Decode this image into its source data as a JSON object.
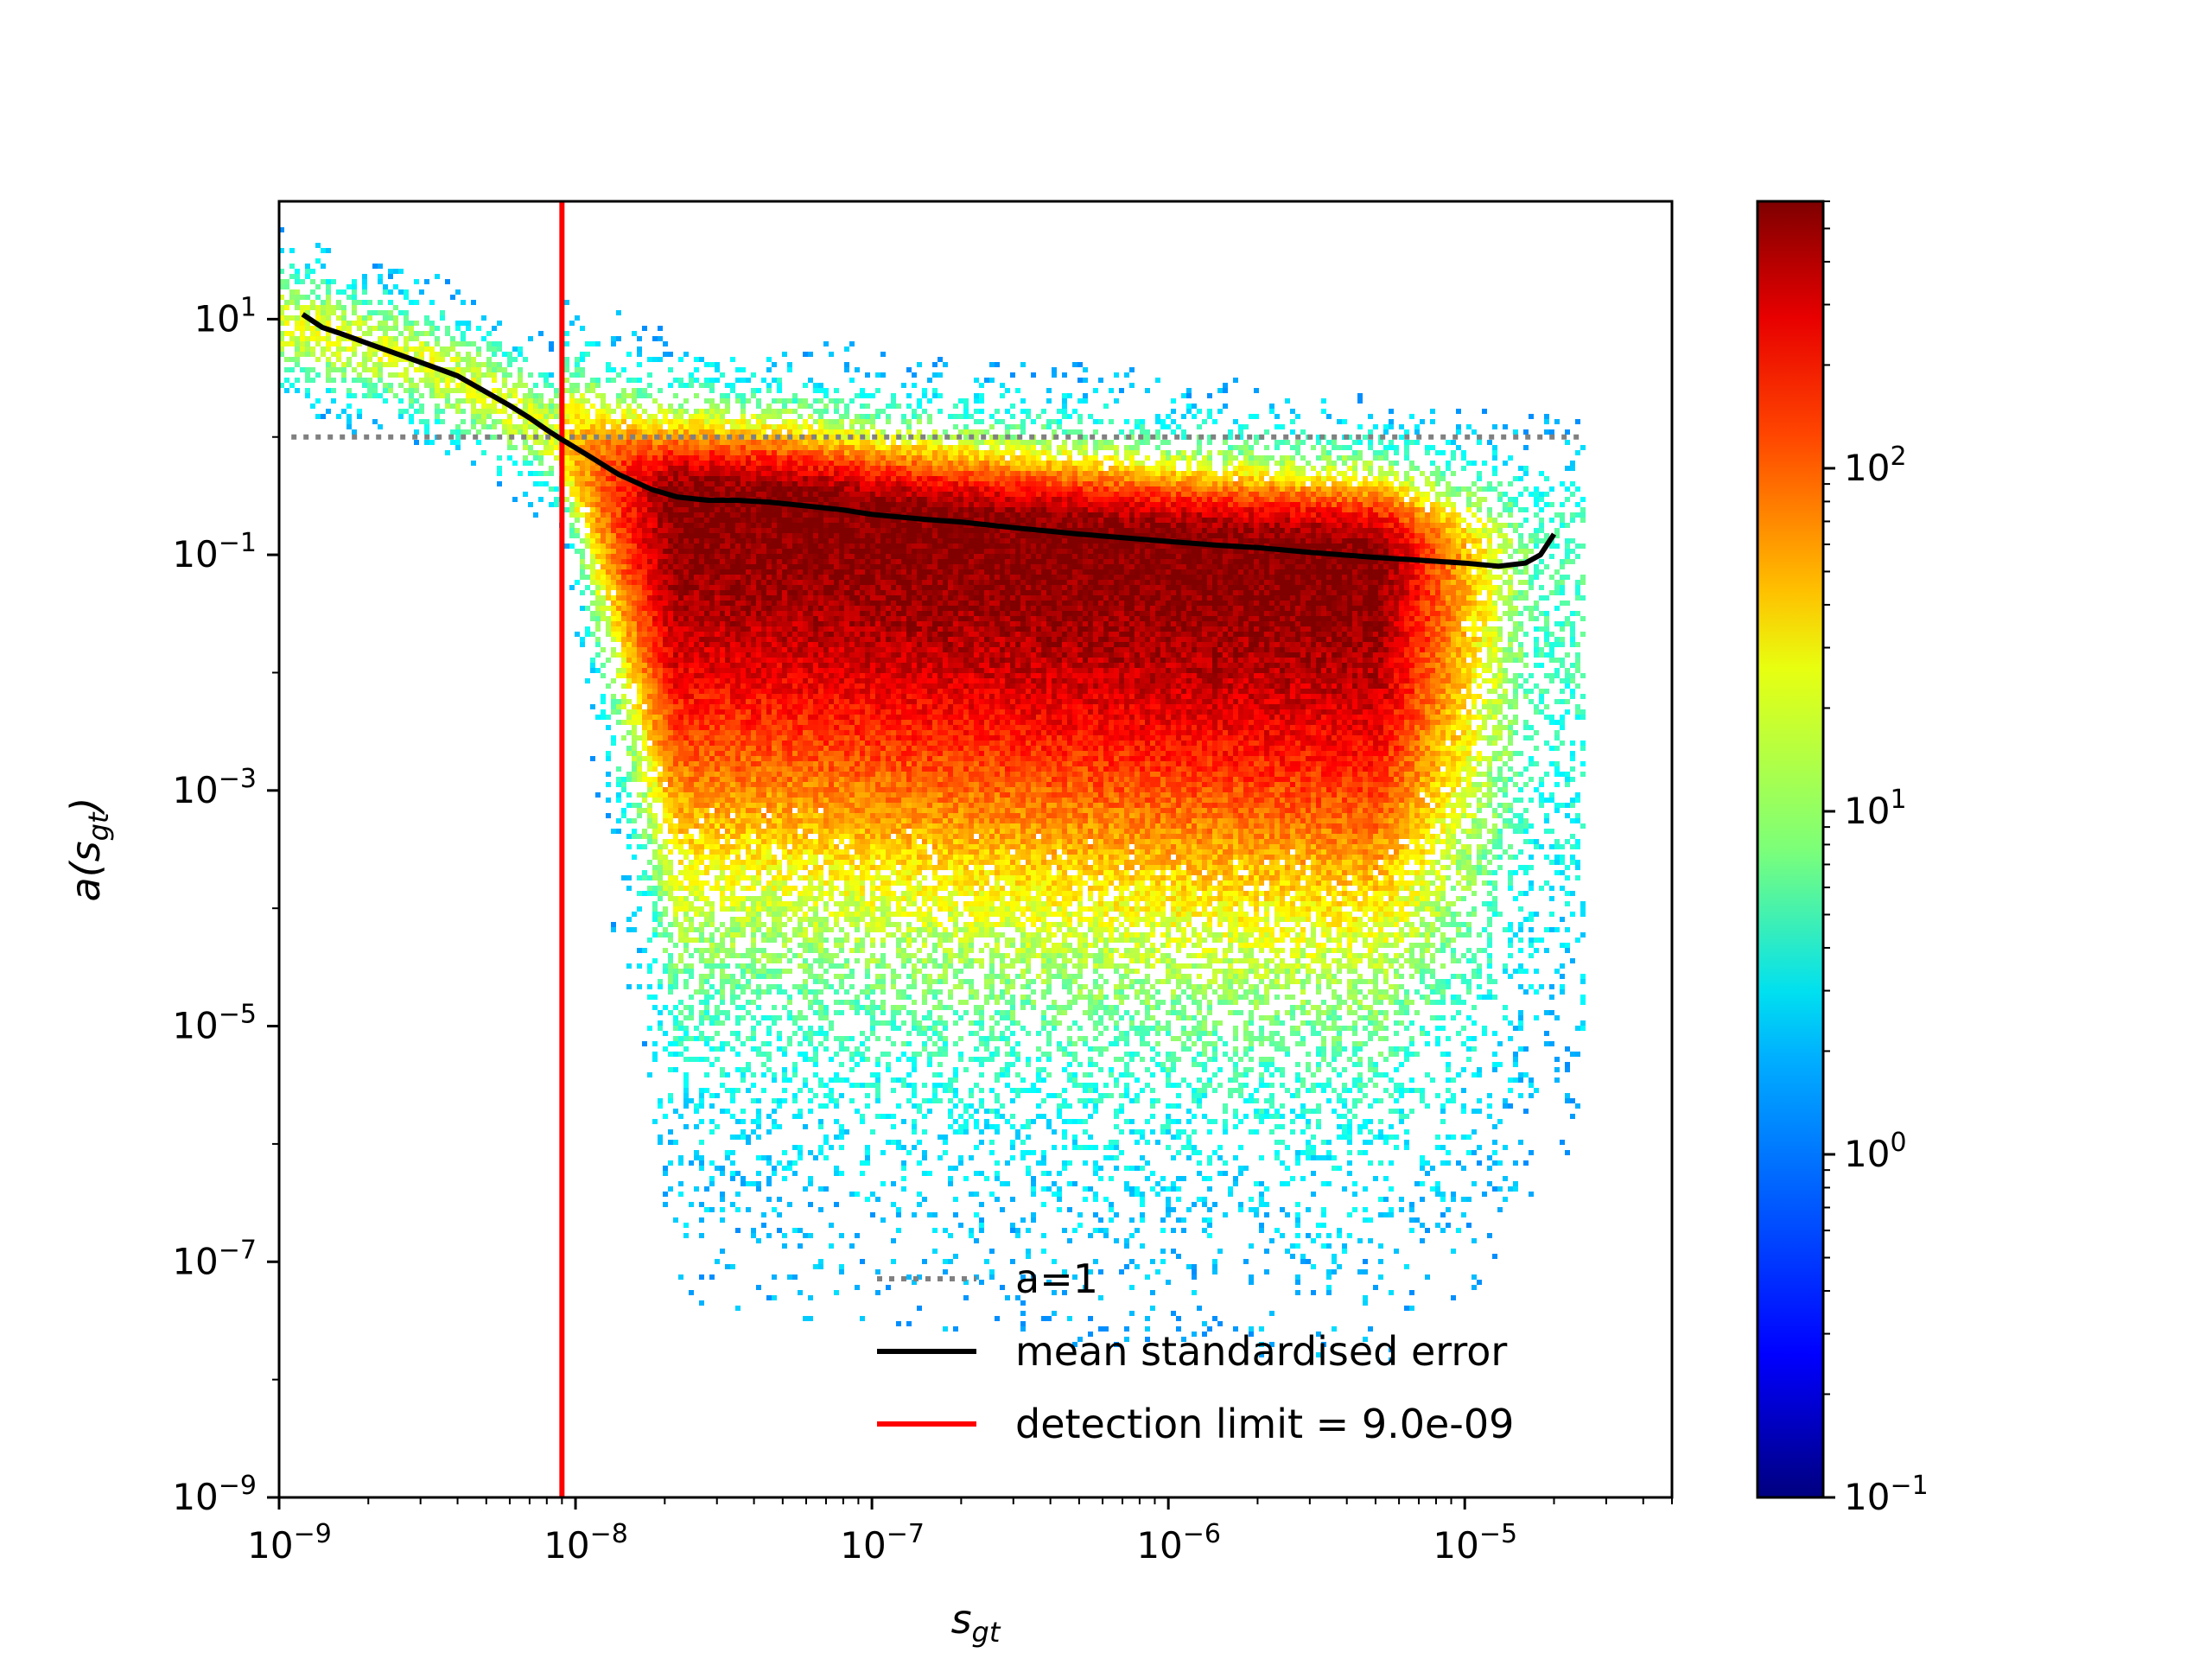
{
  "chart_data": {
    "type": "heatmap",
    "subtype": "2d-histogram-density-scatter",
    "title": "",
    "xlabel": "s_gt",
    "ylabel": "a(s_gt)",
    "x_scale": "log",
    "y_scale": "log",
    "xlim": [
      1e-09,
      5e-05
    ],
    "ylim": [
      1e-09,
      100
    ],
    "x_ticks": [
      {
        "value": 1e-09,
        "base": "10",
        "exp": "−9"
      },
      {
        "value": 1e-08,
        "base": "10",
        "exp": "−8"
      },
      {
        "value": 1e-07,
        "base": "10",
        "exp": "−7"
      },
      {
        "value": 1e-06,
        "base": "10",
        "exp": "−6"
      },
      {
        "value": 1e-05,
        "base": "10",
        "exp": "−5"
      }
    ],
    "y_ticks": [
      {
        "value": 1e-09,
        "base": "10",
        "exp": "−9"
      },
      {
        "value": 1e-07,
        "base": "10",
        "exp": "−7"
      },
      {
        "value": 1e-05,
        "base": "10",
        "exp": "−5"
      },
      {
        "value": 0.001,
        "base": "10",
        "exp": "−3"
      },
      {
        "value": 0.1,
        "base": "10",
        "exp": "−1"
      },
      {
        "value": 10,
        "base": "10",
        "exp": "1"
      }
    ],
    "colorbar": {
      "scale": "log",
      "colormap": "jet",
      "range": [
        0.1,
        600
      ],
      "ticks": [
        {
          "value": 0.1,
          "base": "10",
          "exp": "−1"
        },
        {
          "value": 1,
          "base": "10",
          "exp": "0"
        },
        {
          "value": 10,
          "base": "10",
          "exp": "1"
        },
        {
          "value": 100,
          "base": "10",
          "exp": "2"
        }
      ]
    },
    "reference_lines": [
      {
        "name": "a=1",
        "orientation": "horizontal",
        "y": 1,
        "x_range": [
          1.1e-09,
          2.5e-05
        ],
        "style": "dotted",
        "color": "#808080"
      },
      {
        "name": "detection limit = 9.0e-09",
        "orientation": "vertical",
        "x": 9e-09,
        "style": "solid",
        "color": "#ff0000"
      }
    ],
    "series": [
      {
        "name": "mean standardised error",
        "color": "#000000",
        "x": [
          1.2e-09,
          1.4e-09,
          1.6e-09,
          2e-09,
          3e-09,
          4e-09,
          5e-09,
          6e-09,
          7e-09,
          8e-09,
          9e-09,
          1.1e-08,
          1.4e-08,
          1.8e-08,
          2.2e-08,
          2.8e-08,
          3.5e-08,
          4.5e-08,
          6e-08,
          8e-08,
          1e-07,
          1.5e-07,
          2e-07,
          3e-07,
          5e-07,
          7e-07,
          1e-06,
          1.5e-06,
          2e-06,
          3e-06,
          5e-06,
          7e-06,
          1e-05,
          1.3e-05,
          1.6e-05,
          1.8e-05,
          2e-05
        ],
        "y": [
          11,
          8.5,
          7.6,
          6.2,
          4.3,
          3.3,
          2.4,
          1.85,
          1.45,
          1.15,
          0.95,
          0.7,
          0.48,
          0.36,
          0.31,
          0.29,
          0.29,
          0.28,
          0.26,
          0.24,
          0.22,
          0.2,
          0.19,
          0.17,
          0.15,
          0.14,
          0.13,
          0.12,
          0.115,
          0.105,
          0.095,
          0.09,
          0.085,
          0.08,
          0.085,
          0.1,
          0.15
        ]
      }
    ],
    "density": {
      "description_only": false,
      "ridge_x": [
        1e-09,
        3e-09,
        5e-09,
        7e-09,
        9e-09,
        1.3e-08,
        2e-08,
        3e-08,
        5e-08,
        1e-07,
        3e-07,
        1e-06,
        3e-06,
        1e-05,
        2e-05
      ],
      "ridge_y": [
        10,
        4.5,
        2.4,
        1.4,
        0.9,
        0.5,
        0.32,
        0.3,
        0.28,
        0.22,
        0.17,
        0.13,
        0.11,
        0.09,
        0.12
      ],
      "peak_count": 600,
      "x_extent": [
        1e-09,
        2.5e-05
      ]
    },
    "legend": {
      "placement": "lower-right",
      "entries": [
        {
          "label": "a=1",
          "style": "dotted",
          "color": "#808080"
        },
        {
          "label": "mean standardised error",
          "style": "solid",
          "color": "#000000"
        },
        {
          "label": "detection limit = 9.0e-09",
          "style": "solid",
          "color": "#ff0000"
        }
      ]
    },
    "grid": false
  }
}
